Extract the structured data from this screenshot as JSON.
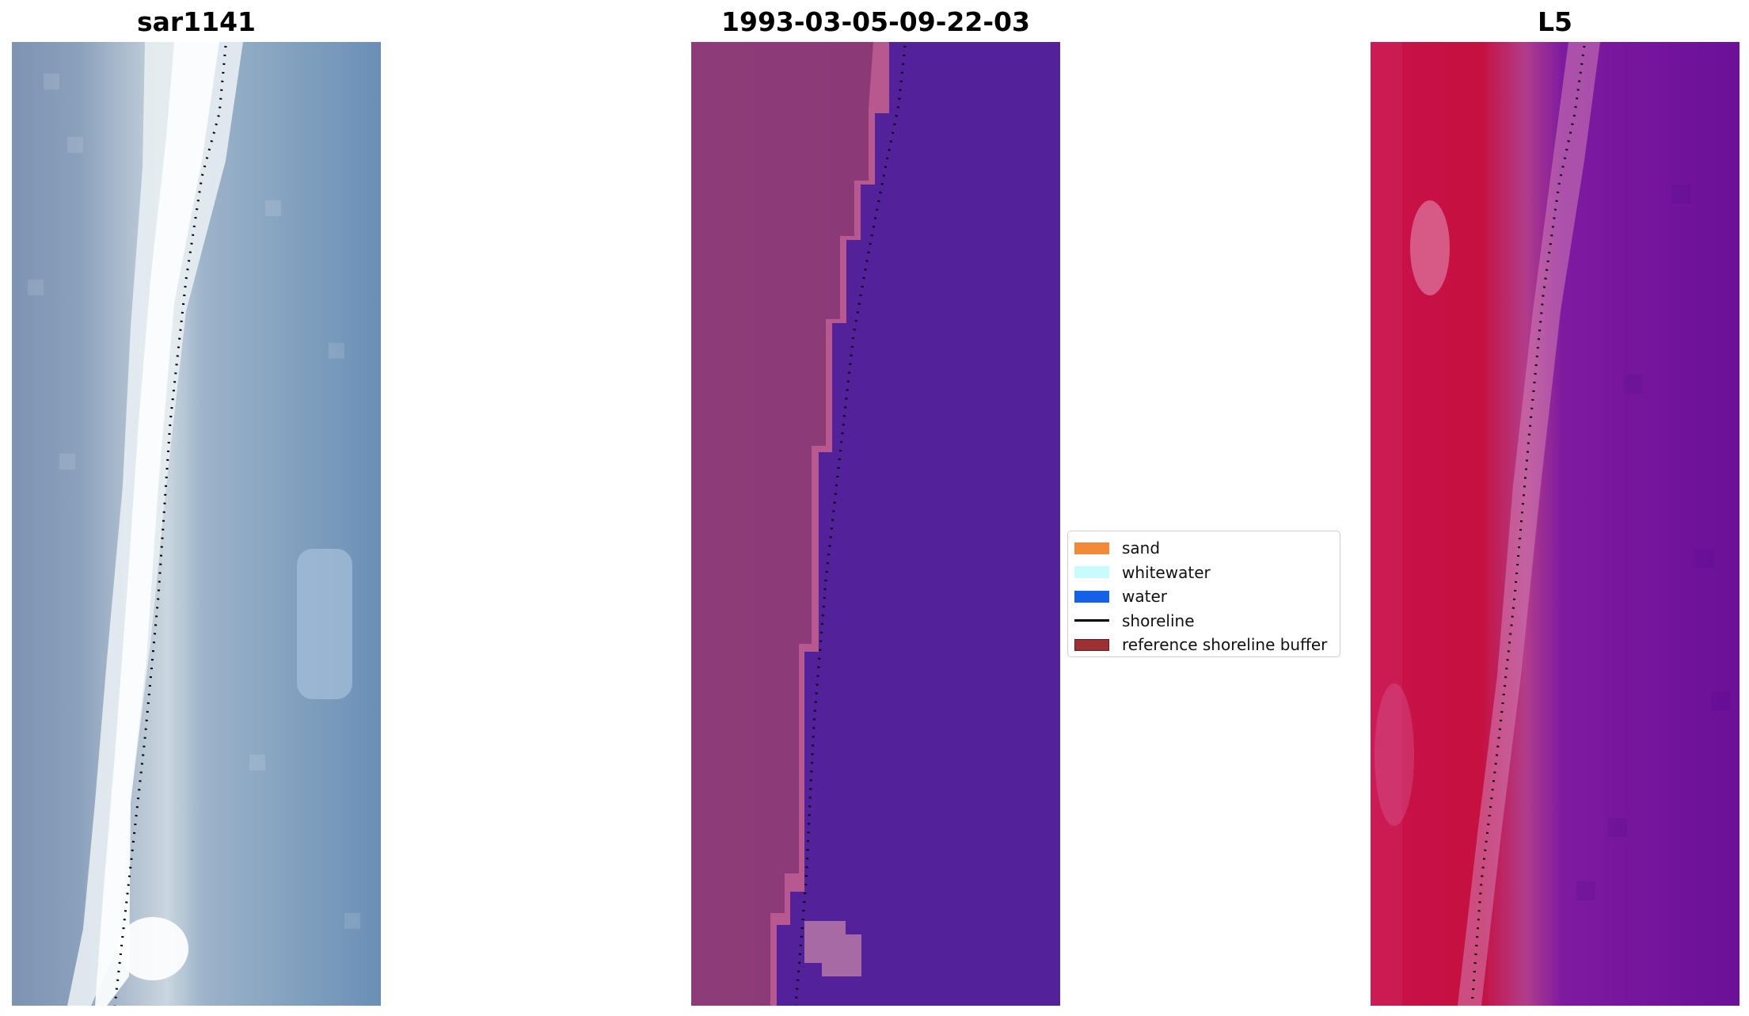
{
  "panels": [
    {
      "title": "sar1141"
    },
    {
      "title": "1993-03-05-09-22-03"
    },
    {
      "title": "L5"
    }
  ],
  "legend": {
    "items": [
      {
        "label": "sand",
        "kind": "patch",
        "color": "#f28a3a"
      },
      {
        "label": "whitewater",
        "kind": "patch",
        "color": "#c8fbfb"
      },
      {
        "label": "water",
        "kind": "patch",
        "color": "#1560e8"
      },
      {
        "label": "shoreline",
        "kind": "line",
        "color": "#000000"
      },
      {
        "label": "reference shoreline buffer",
        "kind": "patch",
        "color": "#9c3033"
      }
    ]
  },
  "colors": {
    "rgb_base": "#6a8fb5",
    "rgb_beach": "#eef3f6",
    "class_water": "#53219a",
    "class_land": "#8c3a77",
    "class_land_light": "#b8588f",
    "nir_land": "#c9123f",
    "nir_water": "#6b1098"
  }
}
